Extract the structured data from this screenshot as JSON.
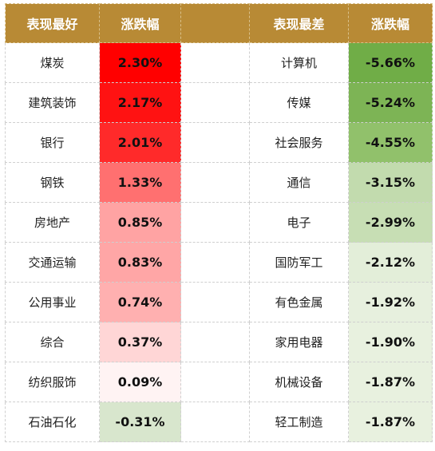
{
  "header": {
    "best_label": "表现最好",
    "change_label_1": "涨跌幅",
    "worst_label": "表现最差",
    "change_label_2": "涨跌幅"
  },
  "best": [
    {
      "name": "煤炭",
      "change": "2.30%",
      "color": "#ff0000"
    },
    {
      "name": "建筑装饰",
      "change": "2.17%",
      "color": "#ff1212"
    },
    {
      "name": "银行",
      "change": "2.01%",
      "color": "#ff2a2a"
    },
    {
      "name": "钢铁",
      "change": "1.33%",
      "color": "#ff7070"
    },
    {
      "name": "房地产",
      "change": "0.85%",
      "color": "#ffa3a3"
    },
    {
      "name": "交通运输",
      "change": "0.83%",
      "color": "#ffa6a6"
    },
    {
      "name": "公用事业",
      "change": "0.74%",
      "color": "#ffb0b0"
    },
    {
      "name": "综合",
      "change": "0.37%",
      "color": "#ffd6d6"
    },
    {
      "name": "纺织服饰",
      "change": "0.09%",
      "color": "#fff3f3"
    },
    {
      "name": "石油石化",
      "change": "-0.31%",
      "color": "#d8e6cd"
    }
  ],
  "worst": [
    {
      "name": "计算机",
      "change": "-5.66%",
      "color": "#70ad47"
    },
    {
      "name": "传媒",
      "change": "-5.24%",
      "color": "#7db455"
    },
    {
      "name": "社会服务",
      "change": "-4.55%",
      "color": "#91c16b"
    },
    {
      "name": "通信",
      "change": "-3.15%",
      "color": "#c2dbae"
    },
    {
      "name": "电子",
      "change": "-2.99%",
      "color": "#c7deb4"
    },
    {
      "name": "国防军工",
      "change": "-2.12%",
      "color": "#e3eed9"
    },
    {
      "name": "有色金属",
      "change": "-1.92%",
      "color": "#e7f0de"
    },
    {
      "name": "家用电器",
      "change": "-1.90%",
      "color": "#e8f1df"
    },
    {
      "name": "机械设备",
      "change": "-1.87%",
      "color": "#e8f1df"
    },
    {
      "name": "轻工制造",
      "change": "-1.87%",
      "color": "#e8f1df"
    }
  ]
}
